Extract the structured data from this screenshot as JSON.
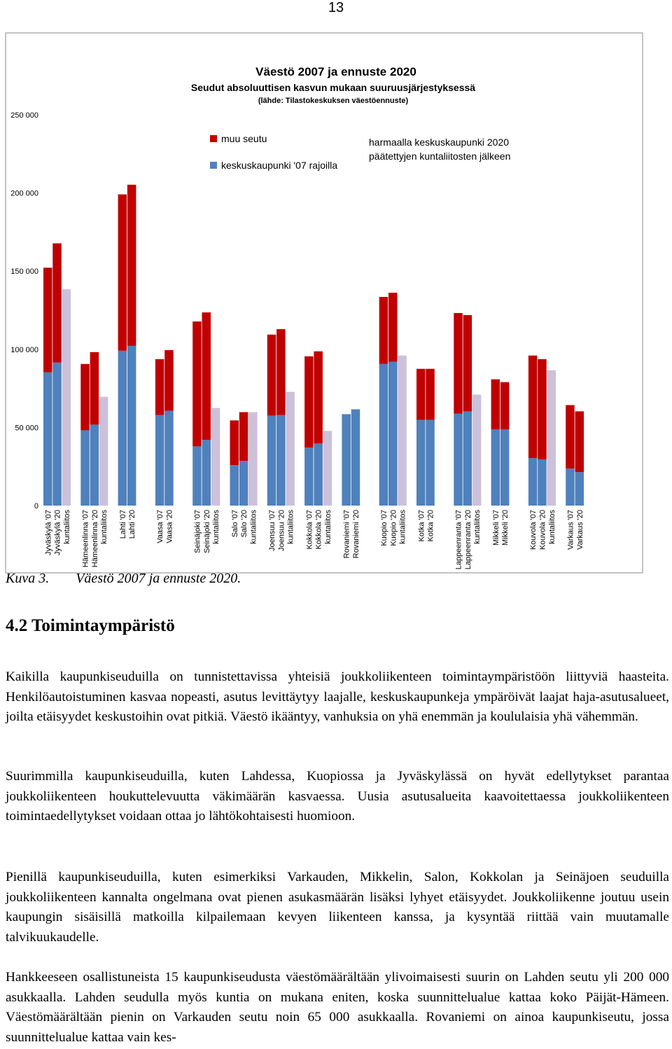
{
  "page_number": "13",
  "chart_data": {
    "type": "stacked-bar",
    "title": "Väestö 2007 ja ennuste 2020",
    "subtitle": "Seudut absoluuttisen kasvun mukaan suuruusjärjestyksessä",
    "source": "(lähde: Tilastokeskuksen väestöennuste)",
    "series": [
      {
        "name": "keskuskaupunki '07 rajoilla",
        "color": "#4f81bd"
      },
      {
        "name": "muu seutu",
        "color": "#c00000"
      }
    ],
    "merger_color": "#ccc1da",
    "annotation": [
      "harmaalla keskuskaupunki 2020",
      "päätettyjen kuntaliitosten jälkeen"
    ],
    "ylim": [
      0,
      250000
    ],
    "yticks": [
      0,
      {
        "value": 50000,
        "label": "50 000"
      },
      {
        "value": 100000,
        "label": "100 000"
      },
      {
        "value": 150000,
        "label": "150 000"
      },
      {
        "value": 200000,
        "label": "200 000"
      },
      {
        "value": 250000,
        "label": "250 000"
      }
    ],
    "groups": [
      {
        "bars": [
          {
            "label": "Jyväskylä '07",
            "values": [
              85300,
              66900
            ]
          },
          {
            "label": "Jyväskylä '20",
            "values": [
              91500,
              76300
            ]
          },
          {
            "label": "kuntaliitos",
            "value": 138400
          }
        ]
      },
      {
        "bars": [
          {
            "label": "Hämeenlinna '07",
            "values": [
              48200,
              42400
            ]
          },
          {
            "label": "Hämeenlinna '20",
            "values": [
              51800,
              46400
            ]
          },
          {
            "label": "kuntaliitos",
            "value": 69600
          }
        ]
      },
      {
        "bars": [
          {
            "label": "Lahti '07",
            "values": [
              99100,
              100000
            ]
          },
          {
            "label": "Lahti '20",
            "values": [
              102200,
              103100
            ]
          }
        ]
      },
      {
        "bars": [
          {
            "label": "Vaasa '07",
            "values": [
              58000,
              35700
            ]
          },
          {
            "label": "Vaasa '20",
            "values": [
              60700,
              38800
            ]
          }
        ]
      },
      {
        "bars": [
          {
            "label": "Seinäjoki '07",
            "values": [
              37900,
              79900
            ]
          },
          {
            "label": "Seinäjoki '20",
            "values": [
              42000,
              81600
            ]
          },
          {
            "label": "kuntaliitos",
            "value": 62500
          }
        ]
      },
      {
        "bars": [
          {
            "label": "Salo '07",
            "values": [
              25900,
              28600
            ]
          },
          {
            "label": "Salo '20",
            "values": [
              28600,
              31200
            ]
          },
          {
            "label": "kuntaliitos",
            "value": 59800
          }
        ]
      },
      {
        "bars": [
          {
            "label": "Joensuu '07",
            "values": [
              57600,
              51800
            ]
          },
          {
            "label": "Joensuu '20",
            "values": [
              58000,
              54900
            ]
          },
          {
            "label": "kuntaliitos",
            "value": 72800
          }
        ]
      },
      {
        "bars": [
          {
            "label": "Kokkola '07",
            "values": [
              37100,
              58400
            ]
          },
          {
            "label": "Kokkola '20",
            "values": [
              39700,
              59000
            ]
          },
          {
            "label": "kuntaliitos",
            "value": 47800
          }
        ]
      },
      {
        "bars": [
          {
            "label": "Rovaniemi '07",
            "values": [
              58500,
              0
            ]
          },
          {
            "label": "Rovaniemi '20",
            "values": [
              61600,
              0
            ]
          }
        ]
      },
      {
        "bars": [
          {
            "label": "Kuopio '07",
            "values": [
              90600,
              42900
            ]
          },
          {
            "label": "Kuopio '20",
            "values": [
              92000,
              44200
            ]
          },
          {
            "label": "kuntaliitos",
            "value": 96000
          }
        ]
      },
      {
        "bars": [
          {
            "label": "Kotka '07",
            "values": [
              54900,
              32600
            ]
          },
          {
            "label": "Kotka '20",
            "values": [
              54900,
              32600
            ]
          }
        ]
      },
      {
        "bars": [
          {
            "label": "Lappeenranta '07",
            "values": [
              58900,
              64300
            ]
          },
          {
            "label": "Lappeenranta '20",
            "values": [
              60300,
              61600
            ]
          },
          {
            "label": "kuntaliitos",
            "value": 71000
          }
        ]
      },
      {
        "bars": [
          {
            "label": "Mikkeli '07",
            "values": [
              48700,
              32100
            ]
          },
          {
            "label": "Mikkeli '20",
            "values": [
              48700,
              30300
            ]
          }
        ]
      },
      {
        "bars": [
          {
            "label": "Kouvola '07",
            "values": [
              30400,
              65600
            ]
          },
          {
            "label": "Kouvola '20",
            "values": [
              29500,
              64200
            ]
          },
          {
            "label": "kuntaliitos",
            "value": 86600
          }
        ]
      },
      {
        "bars": [
          {
            "label": "Varkaus '07",
            "values": [
              23700,
              40600
            ]
          },
          {
            "label": "Varkaus '20",
            "values": [
              21400,
              38900
            ]
          }
        ]
      }
    ]
  },
  "caption": {
    "number": "Kuva 3.",
    "text": "Väestö 2007 ja ennuste 2020."
  },
  "heading": "4.2 Toimintaympäristö",
  "paragraphs": [
    "Kaikilla kaupunkiseuduilla on tunnistettavissa yhteisiä joukkoliikenteen toimintaympäristöön liittyviä haasteita. Henkilöautoistuminen kasvaa nopeasti, asutus levittäytyy laajalle, keskus­kaupunkeja ympäröivät laajat haja-asutusalueet, joilta etäisyydet keskustoihin ovat pitkiä. Väestö ikääntyy, vanhuksia on yhä enemmän ja koululaisia yhä vähemmän.",
    "Suurimmilla kaupunkiseuduilla, kuten Lahdessa, Kuopiossa ja Jyväskylässä on hyvät edelly­tykset parantaa joukkoliikenteen houkuttelevuutta väkimäärän kasvaessa. Uusia asutusalueita kaavoitettaessa joukkoliikenteen toimintaedellytykset voidaan ottaa jo lähtökohtaisesti huomi­oon.",
    "Pienillä kaupunkiseuduilla, kuten esimerkiksi Varkauden, Mikkelin, Salon, Kokkolan ja Seinä­joen seuduilla joukkoliikenteen kannalta ongelmana ovat pienen asukasmäärän lisäksi lyhyet etäisyydet. Joukkoliikenne joutuu usein kaupungin sisäisillä matkoilla kilpailemaan kevyen lii­kenteen kanssa, ja kysyntää riittää vain muutamalle talvikuukaudelle.",
    "Hankkeeseen osallistuneista 15 kaupunkiseudusta väestömäärältään ylivoimaisesti suurin on Lahden seutu yli 200 000 asukkaalla. Lahden seudulla myös kuntia on mukana eniten, koska suunnittelualue kattaa koko Päijät-Hämeen. Väestömäärältään pienin on Varkauden seutu noin 65 000 asukkaalla. Rovaniemi on ainoa kaupunkiseutu, jossa suunnittelualue kattaa vain kes-"
  ]
}
